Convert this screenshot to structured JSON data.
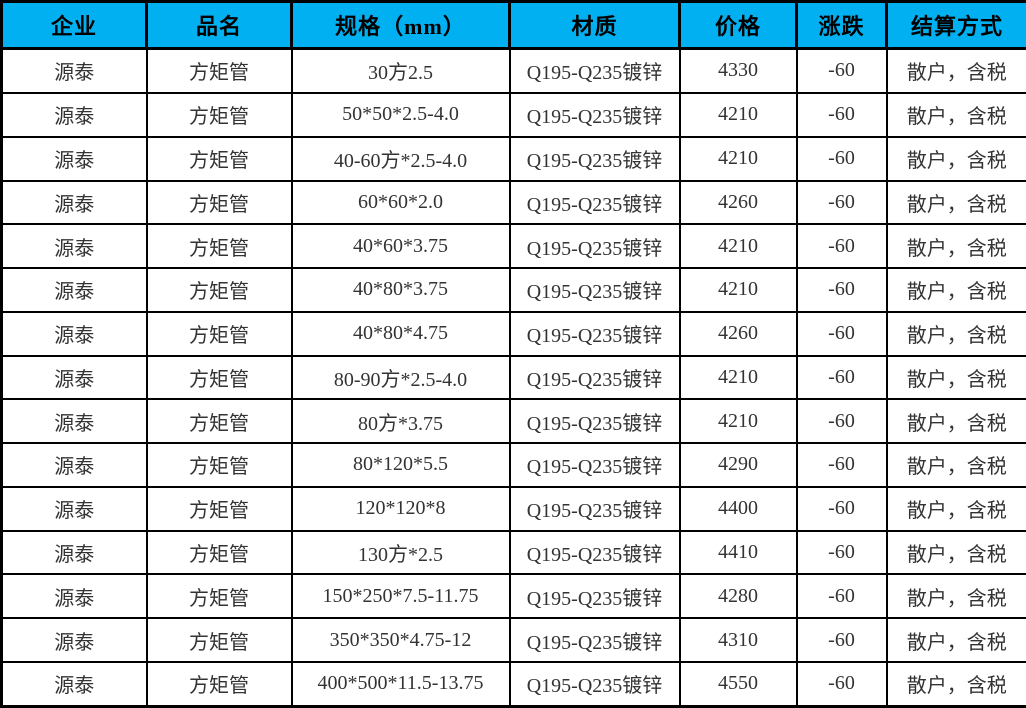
{
  "colors": {
    "header_bg": "#00b0f0",
    "grid_line": "#000000",
    "body_text": "#333333",
    "header_text": "#000000"
  },
  "header": {
    "columns": [
      {
        "key": "company",
        "label": "企业"
      },
      {
        "key": "product",
        "label": "品名"
      },
      {
        "key": "spec",
        "label": "规格（mm）"
      },
      {
        "key": "material",
        "label": "材质"
      },
      {
        "key": "price",
        "label": "价格"
      },
      {
        "key": "change",
        "label": "涨跌"
      },
      {
        "key": "settlement",
        "label": "结算方式"
      }
    ]
  },
  "chart_data": {
    "type": "table",
    "title": "",
    "columns": [
      "企业",
      "品名",
      "规格（mm）",
      "材质",
      "价格",
      "涨跌",
      "结算方式"
    ],
    "rows": [
      [
        "源泰",
        "方矩管",
        "30方2.5",
        "Q195-Q235镀锌",
        "4330",
        "-60",
        "散户，含税"
      ],
      [
        "源泰",
        "方矩管",
        "50*50*2.5-4.0",
        "Q195-Q235镀锌",
        "4210",
        "-60",
        "散户，含税"
      ],
      [
        "源泰",
        "方矩管",
        "40-60方*2.5-4.0",
        "Q195-Q235镀锌",
        "4210",
        "-60",
        "散户，含税"
      ],
      [
        "源泰",
        "方矩管",
        "60*60*2.0",
        "Q195-Q235镀锌",
        "4260",
        "-60",
        "散户，含税"
      ],
      [
        "源泰",
        "方矩管",
        "40*60*3.75",
        "Q195-Q235镀锌",
        "4210",
        "-60",
        "散户，含税"
      ],
      [
        "源泰",
        "方矩管",
        "40*80*3.75",
        "Q195-Q235镀锌",
        "4210",
        "-60",
        "散户，含税"
      ],
      [
        "源泰",
        "方矩管",
        "40*80*4.75",
        "Q195-Q235镀锌",
        "4260",
        "-60",
        "散户，含税"
      ],
      [
        "源泰",
        "方矩管",
        "80-90方*2.5-4.0",
        "Q195-Q235镀锌",
        "4210",
        "-60",
        "散户，含税"
      ],
      [
        "源泰",
        "方矩管",
        "80方*3.75",
        "Q195-Q235镀锌",
        "4210",
        "-60",
        "散户，含税"
      ],
      [
        "源泰",
        "方矩管",
        "80*120*5.5",
        "Q195-Q235镀锌",
        "4290",
        "-60",
        "散户，含税"
      ],
      [
        "源泰",
        "方矩管",
        "120*120*8",
        "Q195-Q235镀锌",
        "4400",
        "-60",
        "散户，含税"
      ],
      [
        "源泰",
        "方矩管",
        "130方*2.5",
        "Q195-Q235镀锌",
        "4410",
        "-60",
        "散户，含税"
      ],
      [
        "源泰",
        "方矩管",
        "150*250*7.5-11.75",
        "Q195-Q235镀锌",
        "4280",
        "-60",
        "散户，含税"
      ],
      [
        "源泰",
        "方矩管",
        "350*350*4.75-12",
        "Q195-Q235镀锌",
        "4310",
        "-60",
        "散户，含税"
      ],
      [
        "源泰",
        "方矩管",
        "400*500*11.5-13.75",
        "Q195-Q235镀锌",
        "4550",
        "-60",
        "散户，含税"
      ]
    ]
  }
}
